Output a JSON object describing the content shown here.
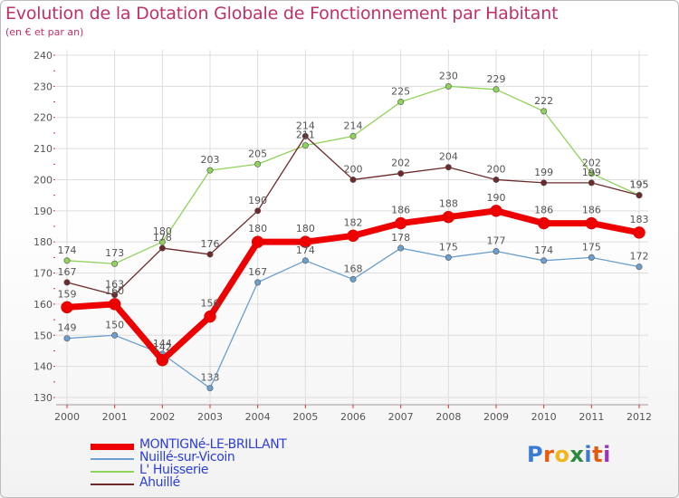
{
  "title": "Evolution de la Dotation Globale de Fonctionnement par Habitant",
  "subtitle": "(en € et par an)",
  "brand": {
    "name": "Proxiti",
    "letters": [
      "P",
      "r",
      "o",
      "x",
      "i",
      "t",
      "i"
    ],
    "colors": [
      "#3a7bd5",
      "#e8590c",
      "#f2b51c",
      "#2b8a3e",
      "#3a7bd5",
      "#e8590c",
      "#9c36b5"
    ]
  },
  "chart_data": {
    "type": "line",
    "title": "Evolution de la Dotation Globale de Fonctionnement par Habitant",
    "ylabel": "(en € et par an)",
    "x": [
      "2000",
      "2001",
      "2002",
      "2003",
      "2004",
      "2005",
      "2006",
      "2007",
      "2008",
      "2009",
      "2010",
      "2011",
      "2012"
    ],
    "ylim": [
      130,
      240
    ],
    "yticks": [
      "130",
      "140",
      "150",
      "160",
      "170",
      "180",
      "190",
      "200",
      "210",
      "220",
      "230",
      "240"
    ],
    "series": [
      {
        "name": "MONTIGNé-LE-BRILLANT",
        "color": "#ee0000",
        "values": [
          159,
          160,
          142,
          156,
          180,
          180,
          182,
          186,
          188,
          190,
          186,
          186,
          183
        ],
        "labels": [
          "159",
          "160",
          "142",
          "156",
          "180",
          "180",
          "182",
          "186",
          "188",
          "190",
          "186",
          "186",
          "183"
        ],
        "emphasis": true
      },
      {
        "name": "Nuillé-sur-Vicoin",
        "color": "#6a9fcf",
        "values": [
          149,
          150,
          144,
          133,
          167,
          174,
          168,
          178,
          175,
          177,
          174,
          175,
          172
        ],
        "labels": [
          "149",
          "150",
          "144",
          "133",
          "167",
          "174",
          "168",
          "178",
          "175",
          "177",
          "174",
          "175",
          "172"
        ],
        "emphasis": false
      },
      {
        "name": "L' Huisserie",
        "color": "#90d35a",
        "values": [
          174,
          173,
          180,
          203,
          205,
          211,
          214,
          225,
          230,
          229,
          222,
          202,
          195
        ],
        "labels": [
          "174",
          "173",
          "180",
          "203",
          "205",
          "211",
          "214",
          "225",
          "230",
          "229",
          "222",
          "202",
          "195"
        ],
        "emphasis": false
      },
      {
        "name": "Ahuillé",
        "color": "#6e2a2a",
        "values": [
          167,
          163,
          178,
          176,
          190,
          214,
          200,
          202,
          204,
          200,
          199,
          199,
          195
        ],
        "labels": [
          "167",
          "163",
          "178",
          "176",
          "190",
          "214",
          "200",
          "202",
          "204",
          "200",
          "199",
          "199",
          "195"
        ],
        "emphasis": false
      }
    ]
  }
}
